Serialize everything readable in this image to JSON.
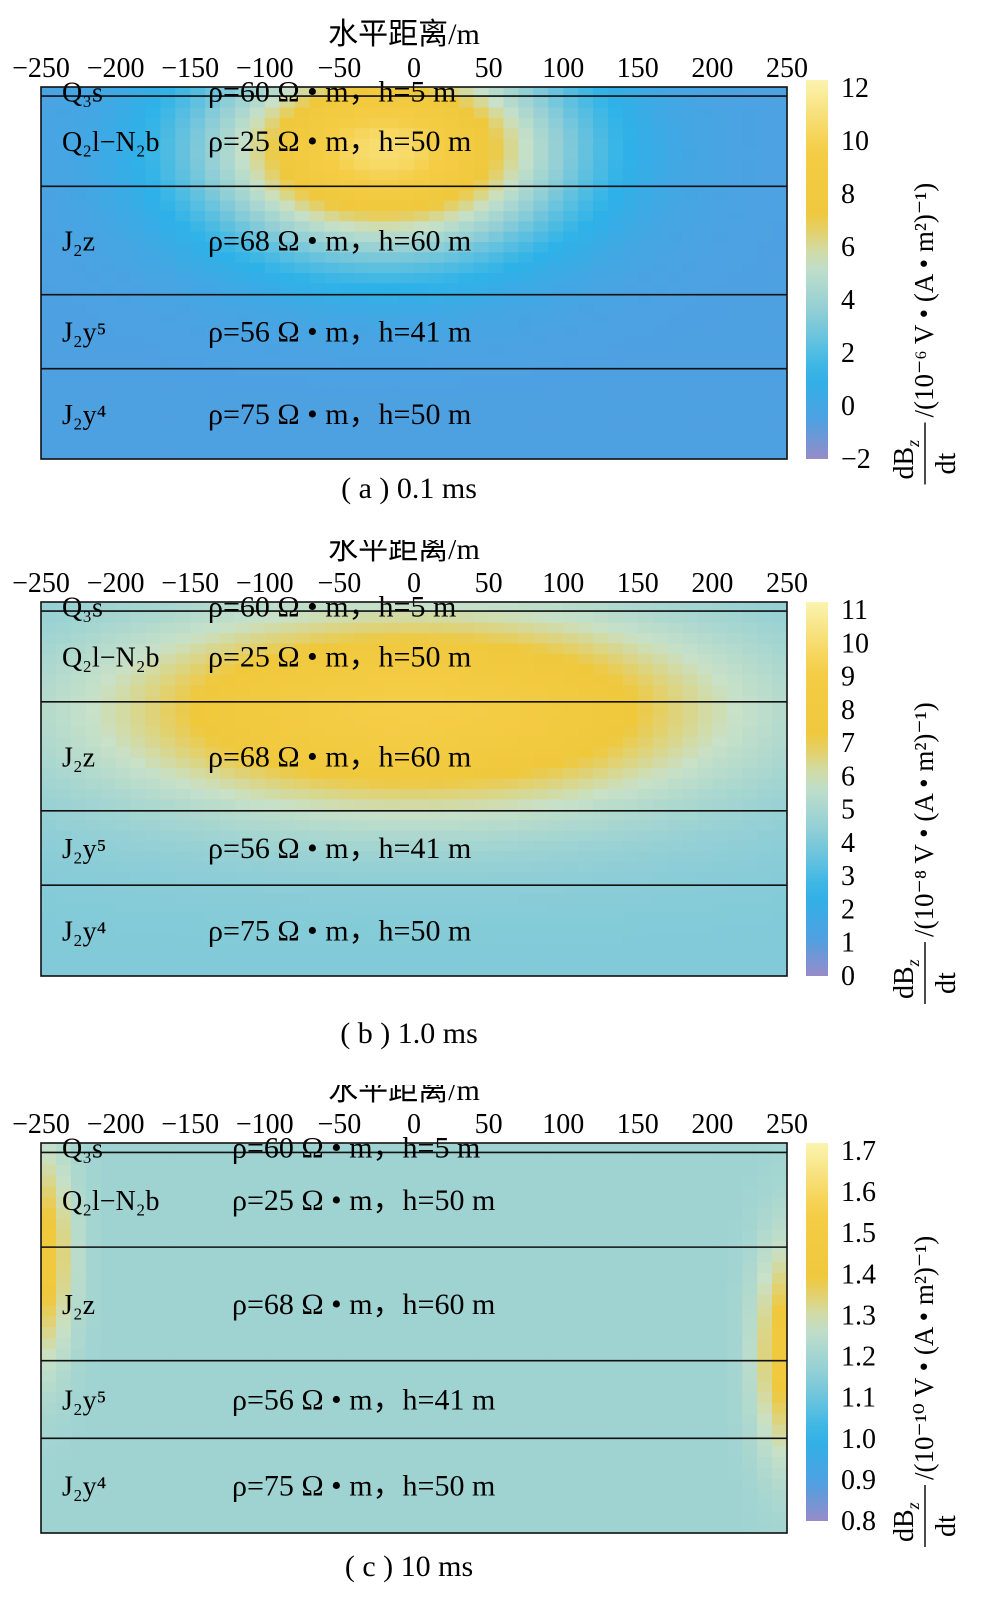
{
  "chart_data": [
    {
      "type": "heatmap",
      "caption": "( a ) 0.1 ms",
      "xlabel": "水平距离/m",
      "x_ticks": [
        "−250",
        "−200",
        "−150",
        "−100",
        "−50",
        "0",
        "50",
        "100",
        "150",
        "200",
        "250"
      ],
      "colorbar_label_main": "dB",
      "colorbar_label_sub": "z",
      "colorbar_label_den": "dt",
      "colorbar_unit": "/(10⁻⁶ V • (A • m²)⁻¹)",
      "colorbar_range": [
        -2,
        12
      ],
      "colorbar_ticks": [
        "12",
        "10",
        "8",
        "6",
        "4",
        "2",
        "0",
        "−2"
      ],
      "layers": [
        {
          "id": "Q3s",
          "name": "Q₃s",
          "label": "ρ=60 Ω • m，h=5 m",
          "thickness": 5
        },
        {
          "id": "Q2l-N2b",
          "name": "Q₂l−N₂b",
          "label": "ρ=25 Ω • m，h=50 m",
          "thickness": 50
        },
        {
          "id": "J2z",
          "name": "J₂z",
          "label": "ρ=68 Ω • m，h=60 m",
          "thickness": 60
        },
        {
          "id": "J2y5",
          "name": "J₂y⁵",
          "label": "ρ=56 Ω • m，h=41 m",
          "thickness": 41
        },
        {
          "id": "J2y4",
          "name": "J₂y⁴",
          "label": "ρ=75 Ω • m，h=50 m",
          "thickness": 50
        }
      ],
      "field_background": -0.5,
      "field_anomalies": [
        {
          "x_range": [
            -160,
            120
          ],
          "center_x": -20,
          "center_depth": 35,
          "peak": 10.5
        }
      ]
    },
    {
      "type": "heatmap",
      "caption": "( b ) 1.0 ms",
      "xlabel": "水平距离/m",
      "x_ticks": [
        "−250",
        "−200",
        "−150",
        "−100",
        "−50",
        "0",
        "50",
        "100",
        "150",
        "200",
        "250"
      ],
      "colorbar_label_main": "dB",
      "colorbar_label_sub": "z",
      "colorbar_label_den": "dt",
      "colorbar_unit": "/(10⁻⁸ V • (A • m²)⁻¹)",
      "colorbar_range": [
        0,
        11
      ],
      "colorbar_ticks": [
        "11",
        "10",
        "9",
        "8",
        "7",
        "6",
        "5",
        "4",
        "3",
        "2",
        "1",
        "0"
      ],
      "layers": [
        {
          "id": "Q3s",
          "name": "Q₃s",
          "label": "ρ=60 Ω • m，h=5 m",
          "thickness": 5
        },
        {
          "id": "Q2l-N2b",
          "name": "Q₂l−N₂b",
          "label": "ρ=25 Ω • m，h=50 m",
          "thickness": 50
        },
        {
          "id": "J2z",
          "name": "J₂z",
          "label": "ρ=68 Ω • m，h=60 m",
          "thickness": 60
        },
        {
          "id": "J2y5",
          "name": "J₂y⁵",
          "label": "ρ=56 Ω • m，h=41 m",
          "thickness": 41
        },
        {
          "id": "J2y4",
          "name": "J₂y⁴",
          "label": "ρ=75 Ω • m，h=50 m",
          "thickness": 50
        }
      ],
      "field_background": 4,
      "field_anomalies": [
        {
          "x_range": [
            -250,
            250
          ],
          "center_x": 0,
          "center_depth": 60,
          "peak": 9
        }
      ]
    },
    {
      "type": "heatmap",
      "caption": "( c ) 10 ms",
      "xlabel": "水平距离/m",
      "x_ticks": [
        "−250",
        "−200",
        "−150",
        "−100",
        "−50",
        "0",
        "50",
        "100",
        "150",
        "200",
        "250"
      ],
      "colorbar_label_main": "dB",
      "colorbar_label_sub": "z",
      "colorbar_label_den": "dt",
      "colorbar_unit": "/(10⁻¹⁰ V • (A • m²)⁻¹)",
      "colorbar_range": [
        0.8,
        1.7
      ],
      "colorbar_ticks": [
        "1.7",
        "1.6",
        "1.5",
        "1.4",
        "1.3",
        "1.2",
        "1.1",
        "1.0",
        "0.9",
        "0.8"
      ],
      "layers": [
        {
          "id": "Q3s",
          "name": "Q₃s",
          "label": "ρ=60 Ω • m，h=5 m",
          "thickness": 5
        },
        {
          "id": "Q2l-N2b",
          "name": "Q₂l−N₂b",
          "label": "ρ=25 Ω • m，h=50 m",
          "thickness": 50
        },
        {
          "id": "J2z",
          "name": "J₂z",
          "label": "ρ=68 Ω • m，h=60 m",
          "thickness": 60
        },
        {
          "id": "J2y5",
          "name": "J₂y⁵",
          "label": "ρ=56 Ω • m，h=41 m",
          "thickness": 41
        },
        {
          "id": "J2y4",
          "name": "J₂y⁴",
          "label": "ρ=75 Ω • m，h=50 m",
          "thickness": 50
        }
      ],
      "field_background": 1.18,
      "field_anomalies": [
        {
          "x_range": [
            -250,
            -200
          ],
          "center_x": -250,
          "center_depth": 60,
          "peak": 1.42
        },
        {
          "x_range": [
            200,
            250
          ],
          "center_x": 250,
          "center_depth": 110,
          "peak": 1.42
        }
      ]
    }
  ]
}
